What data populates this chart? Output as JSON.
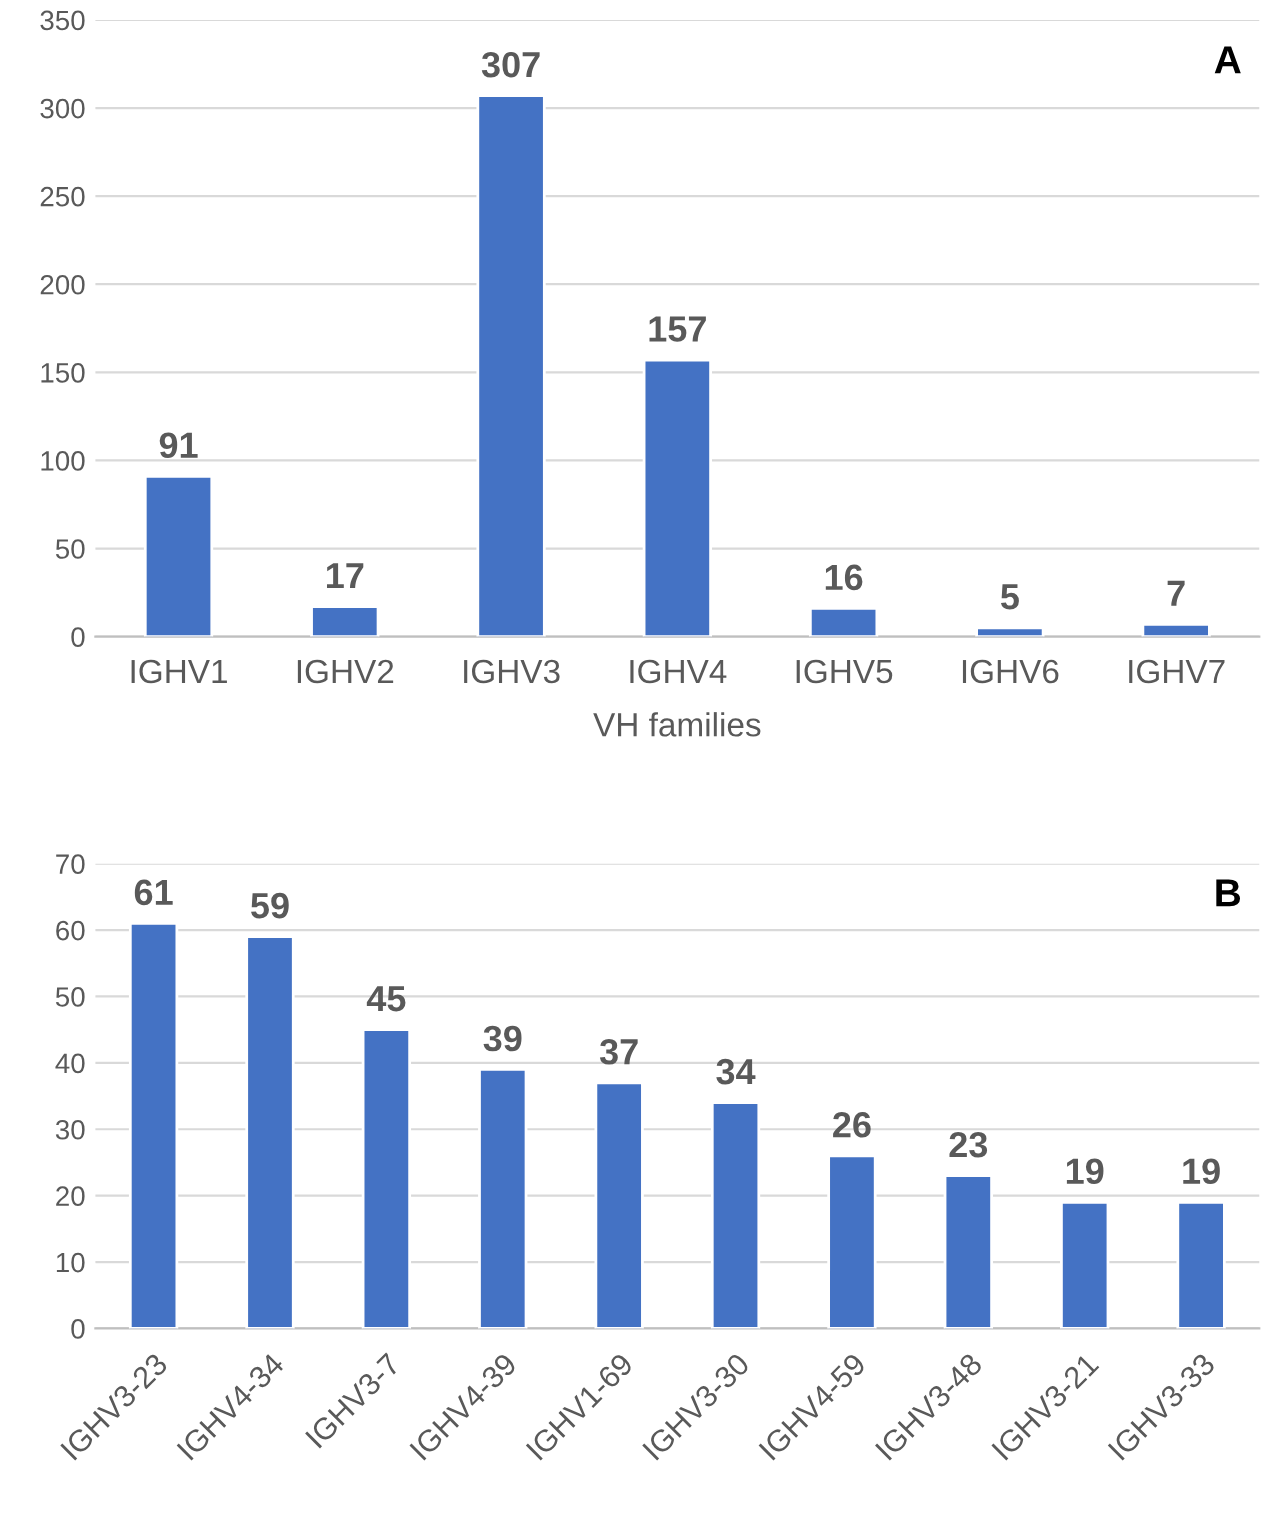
{
  "chart_data": [
    {
      "type": "bar",
      "title": "A",
      "xlabel": "VH families",
      "categories": [
        "IGHV1",
        "IGHV2",
        "IGHV3",
        "IGHV4",
        "IGHV5",
        "IGHV6",
        "IGHV7"
      ],
      "values": [
        91,
        17,
        307,
        157,
        16,
        5,
        7
      ],
      "color": "#4472c4",
      "ylim": [
        0,
        350
      ],
      "yticks": [
        0,
        50,
        100,
        150,
        200,
        250,
        300,
        350
      ],
      "grid": "y",
      "data_labels": true
    },
    {
      "type": "bar",
      "title": "B",
      "categories": [
        "IGHV3-23",
        "IGHV4-34",
        "IGHV3-7",
        "IGHV4-39",
        "IGHV1-69",
        "IGHV3-30",
        "IGHV4-59",
        "IGHV3-48",
        "IGHV3-21",
        "IGHV3-33"
      ],
      "values": [
        61,
        59,
        45,
        39,
        37,
        34,
        26,
        23,
        19,
        19
      ],
      "color": "#4472c4",
      "ylim": [
        0,
        70
      ],
      "yticks": [
        0,
        10,
        20,
        30,
        40,
        50,
        60,
        70
      ],
      "grid": "y",
      "data_labels": true
    }
  ]
}
